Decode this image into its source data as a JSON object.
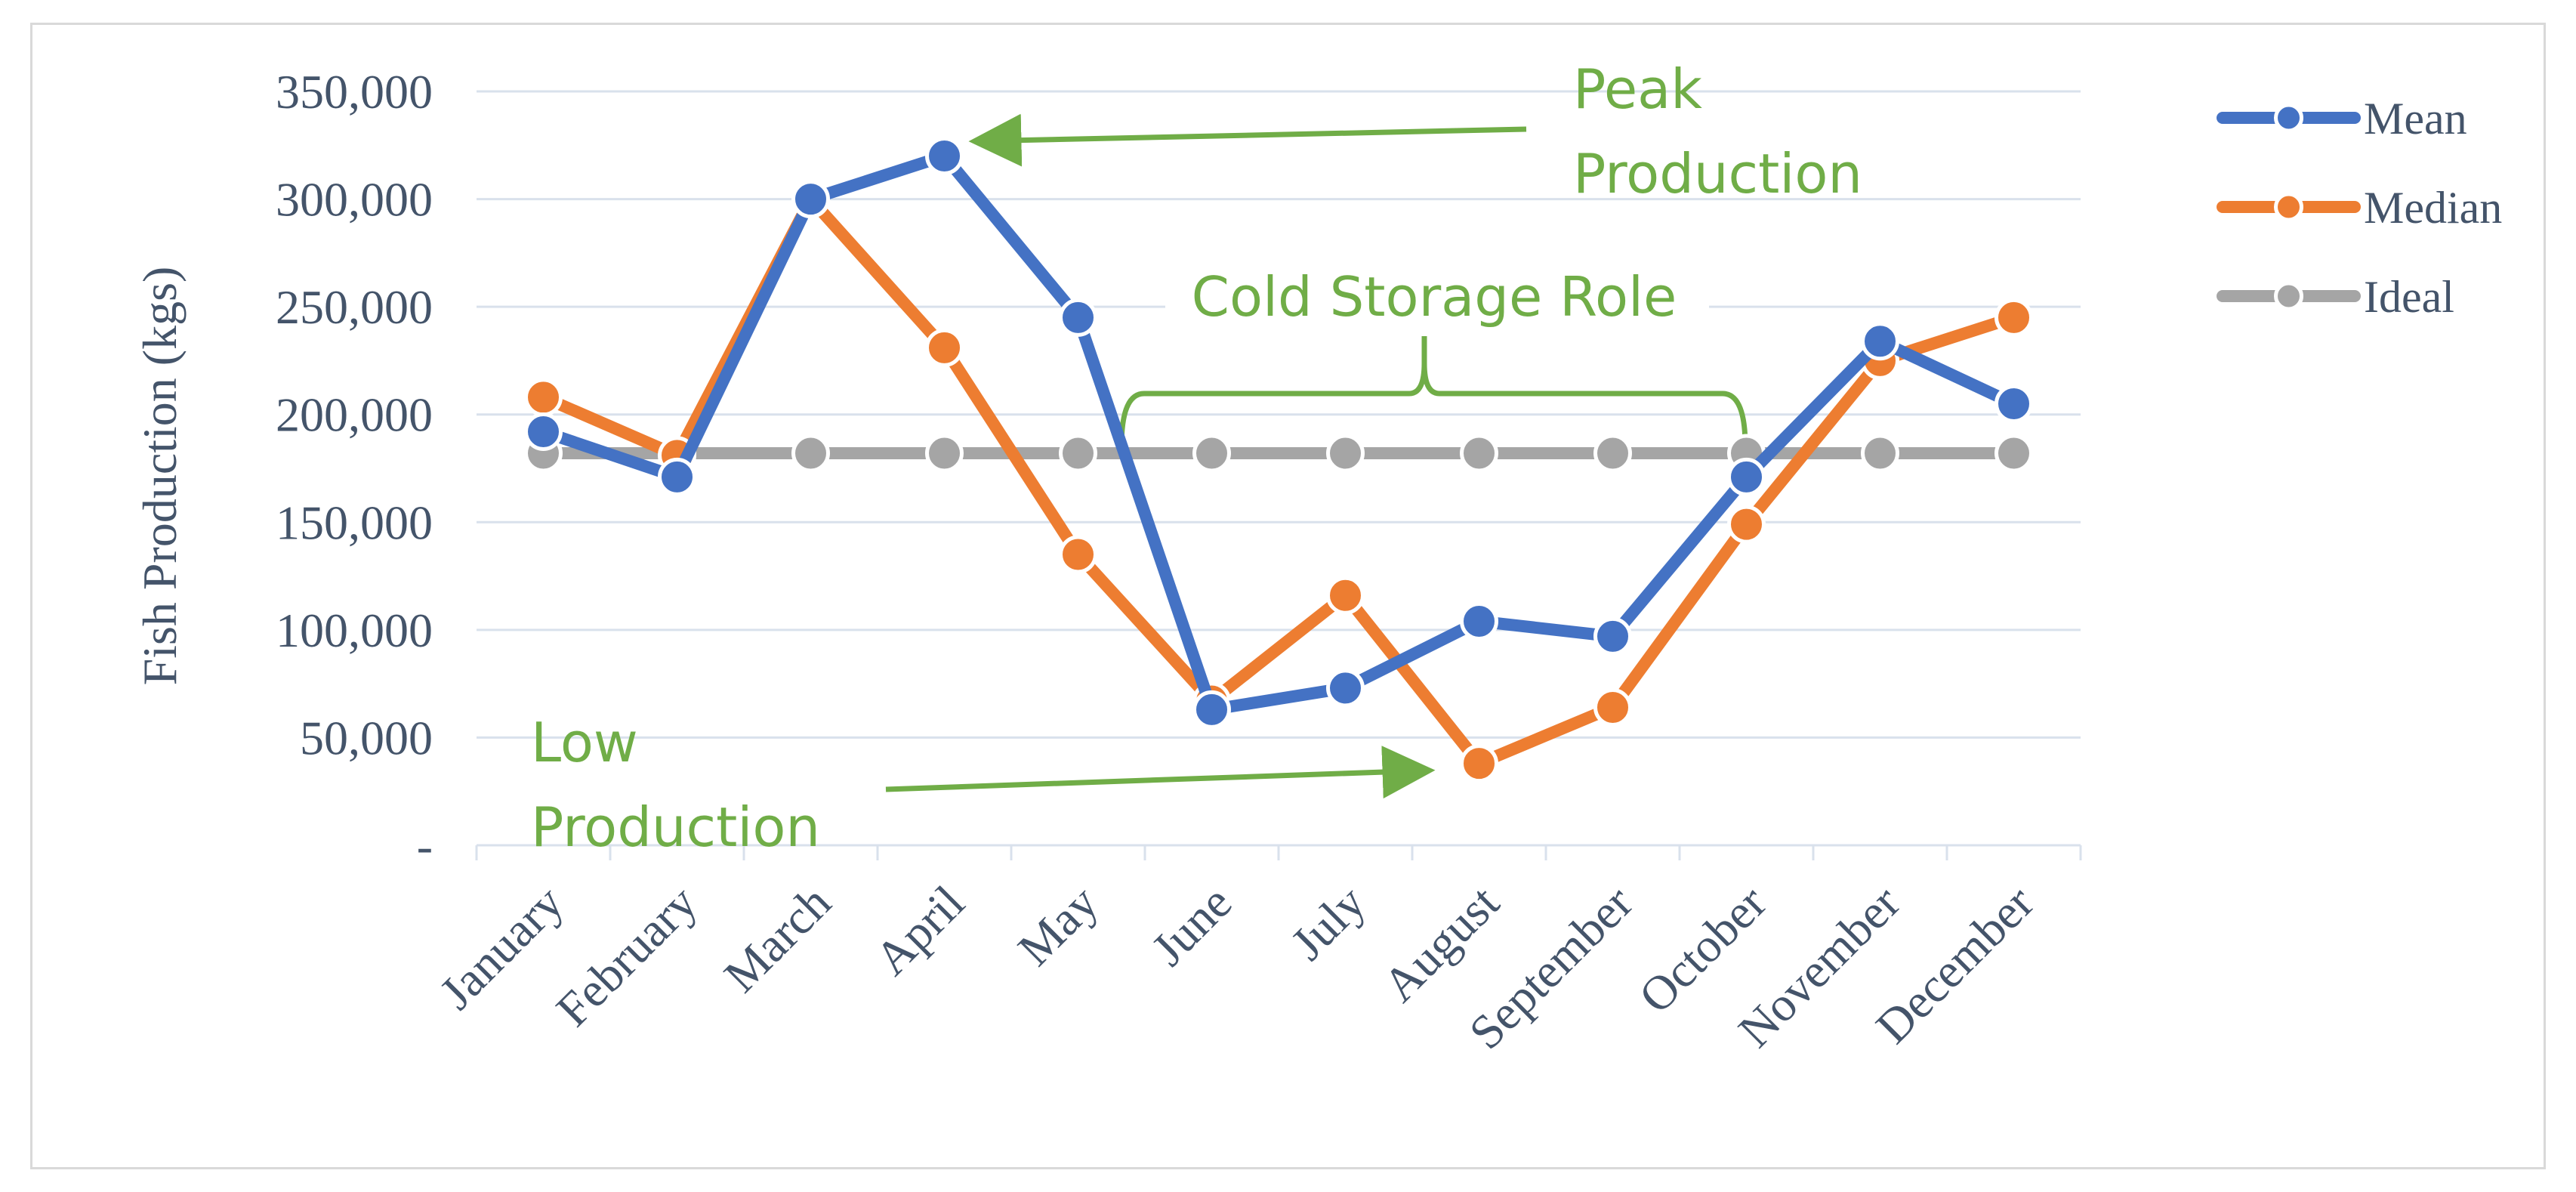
{
  "chart_data": {
    "type": "line",
    "title": "",
    "xlabel": "",
    "ylabel": "Fish Production (kgs)",
    "ylim": [
      0,
      350000
    ],
    "yticks": [
      0,
      50000,
      100000,
      150000,
      200000,
      250000,
      300000,
      350000
    ],
    "ytick_labels": [
      "-",
      "50,000",
      "100,000",
      "150,000",
      "200,000",
      "250,000",
      "300,000",
      "350,000"
    ],
    "grid": true,
    "legend_position": "top-right",
    "categories": [
      "January",
      "February",
      "March",
      "April",
      "May",
      "June",
      "July",
      "August",
      "September",
      "October",
      "November",
      "December"
    ],
    "series": [
      {
        "name": "Mean",
        "color": "#4472c4",
        "values": [
          192000,
          171000,
          300000,
          320000,
          245000,
          63000,
          73000,
          104000,
          97000,
          171000,
          234000,
          205000
        ]
      },
      {
        "name": "Median",
        "color": "#ed7d31",
        "values": [
          208000,
          181000,
          300000,
          231000,
          135000,
          67000,
          116000,
          38000,
          64000,
          149000,
          225000,
          245000
        ]
      },
      {
        "name": "Ideal",
        "color": "#a5a5a5",
        "values": [
          182000,
          182000,
          182000,
          182000,
          182000,
          182000,
          182000,
          182000,
          182000,
          182000,
          182000,
          182000
        ]
      }
    ],
    "annotations": [
      {
        "id": "peak",
        "lines": [
          "Peak",
          "Production"
        ],
        "color": "#70ad47",
        "arrow_to": {
          "category": "April",
          "value": 320000
        }
      },
      {
        "id": "low",
        "lines": [
          "Low",
          "Production"
        ],
        "color": "#70ad47",
        "arrow_to": {
          "category": "August",
          "value": 38000
        }
      },
      {
        "id": "cold-storage",
        "lines": [
          "Cold Storage Role"
        ],
        "color": "#70ad47",
        "brace_from": "May",
        "brace_to": "October"
      }
    ]
  }
}
